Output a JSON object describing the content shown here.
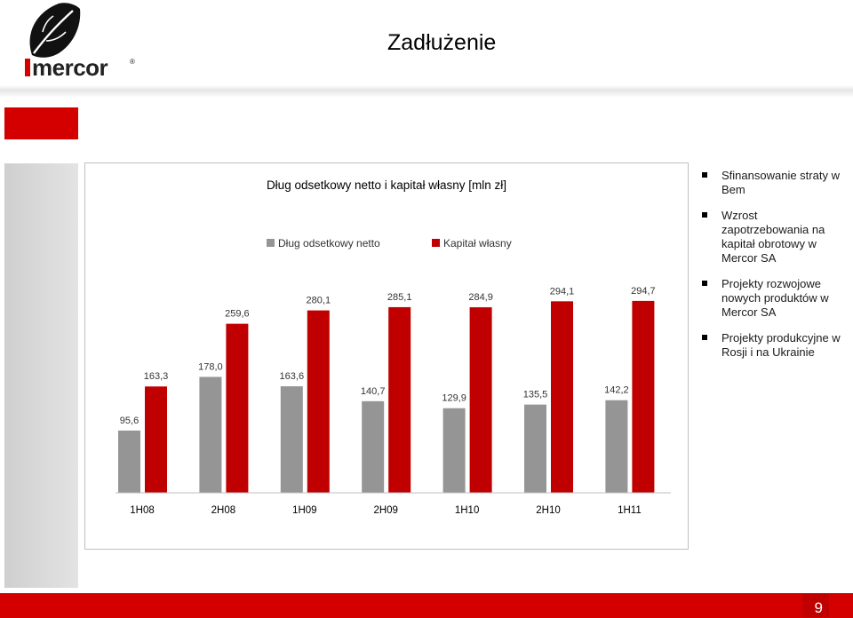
{
  "logo": {
    "text": "mercor",
    "mark": "®"
  },
  "page_title": "Zadłużenie",
  "bullets": [
    "Sfinansowanie straty w Bem",
    "Wzrost zapotrzebowania na kapitał obrotowy w Mercor SA",
    "Projekty rozwojowe nowych produktów w Mercor SA",
    "Projekty produkcyjne w Rosji i na Ukrainie"
  ],
  "page_number": "9",
  "colors": {
    "brand_red": "#d40000",
    "debt_grey": "#959595",
    "equity_red": "#c00000"
  },
  "chart_data": {
    "type": "bar",
    "title": "Dług odsetkowy netto i kapitał własny [mln zł]",
    "categories": [
      "1H08",
      "2H08",
      "1H09",
      "2H09",
      "1H10",
      "2H10",
      "1H11"
    ],
    "series": [
      {
        "name": "Dług odsetkowy netto",
        "values": [
          95.6,
          178.0,
          163.6,
          140.7,
          129.9,
          135.5,
          142.2
        ],
        "labels": [
          "95,6",
          "178,0",
          "163,6",
          "140,7",
          "129,9",
          "135,5",
          "142,2"
        ]
      },
      {
        "name": "Kapitał własny",
        "values": [
          163.3,
          259.6,
          280.1,
          285.1,
          284.9,
          294.1,
          294.7
        ],
        "labels": [
          "163,3",
          "259,6",
          "280,1",
          "285,1",
          "284,9",
          "294,1",
          "294,7"
        ]
      }
    ],
    "legend_position": "top",
    "grid": false,
    "ylim": [
      0,
      300
    ]
  }
}
